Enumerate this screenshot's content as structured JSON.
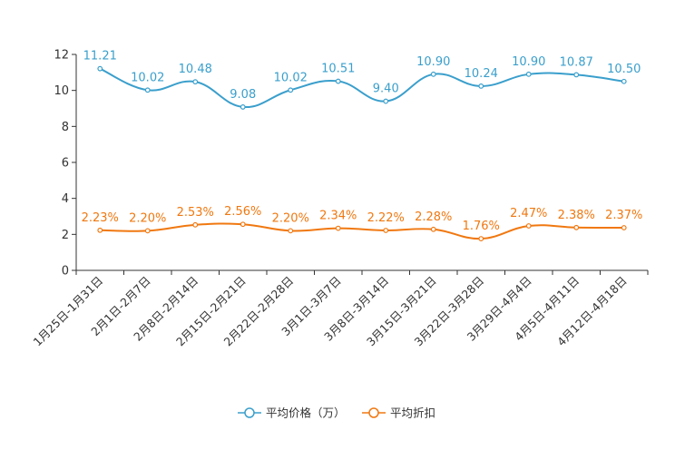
{
  "chart_data": {
    "type": "line",
    "title": "",
    "xlabel": "",
    "ylabel": "",
    "ylim": [
      0,
      12
    ],
    "yticks": [
      "0",
      "2",
      "4",
      "6",
      "8",
      "10",
      "12"
    ],
    "grid": false,
    "legend_position": "bottom-center",
    "categories": [
      "1月25日-1月31日",
      "2月1日-2月7日",
      "2月8日-2月14日",
      "2月15日-2月21日",
      "2月22日-2月28日",
      "3月1日-3月7日",
      "3月8日-3月14日",
      "3月15日-3月21日",
      "3月22日-3月28日",
      "3月29日-4月4日",
      "4月5日-4月11日",
      "4月12日-4月18日"
    ],
    "series": [
      {
        "name": "平均价格（万）",
        "color": "#3a9fcc",
        "values": [
          11.21,
          10.02,
          10.48,
          9.08,
          10.02,
          10.51,
          9.4,
          10.9,
          10.24,
          10.9,
          10.87,
          10.5
        ],
        "labels": [
          "11.21",
          "10.02",
          "10.48",
          "9.08",
          "10.02",
          "10.51",
          "9.40",
          "10.90",
          "10.24",
          "10.90",
          "10.87",
          "10.50"
        ]
      },
      {
        "name": "平均折扣",
        "color": "#f07810",
        "values": [
          2.23,
          2.2,
          2.53,
          2.56,
          2.2,
          2.34,
          2.22,
          2.28,
          1.76,
          2.47,
          2.38,
          2.37
        ],
        "labels": [
          "2.23%",
          "2.20%",
          "2.53%",
          "2.56%",
          "2.20%",
          "2.34%",
          "2.22%",
          "2.28%",
          "1.76%",
          "2.47%",
          "2.38%",
          "2.37%"
        ]
      }
    ]
  }
}
